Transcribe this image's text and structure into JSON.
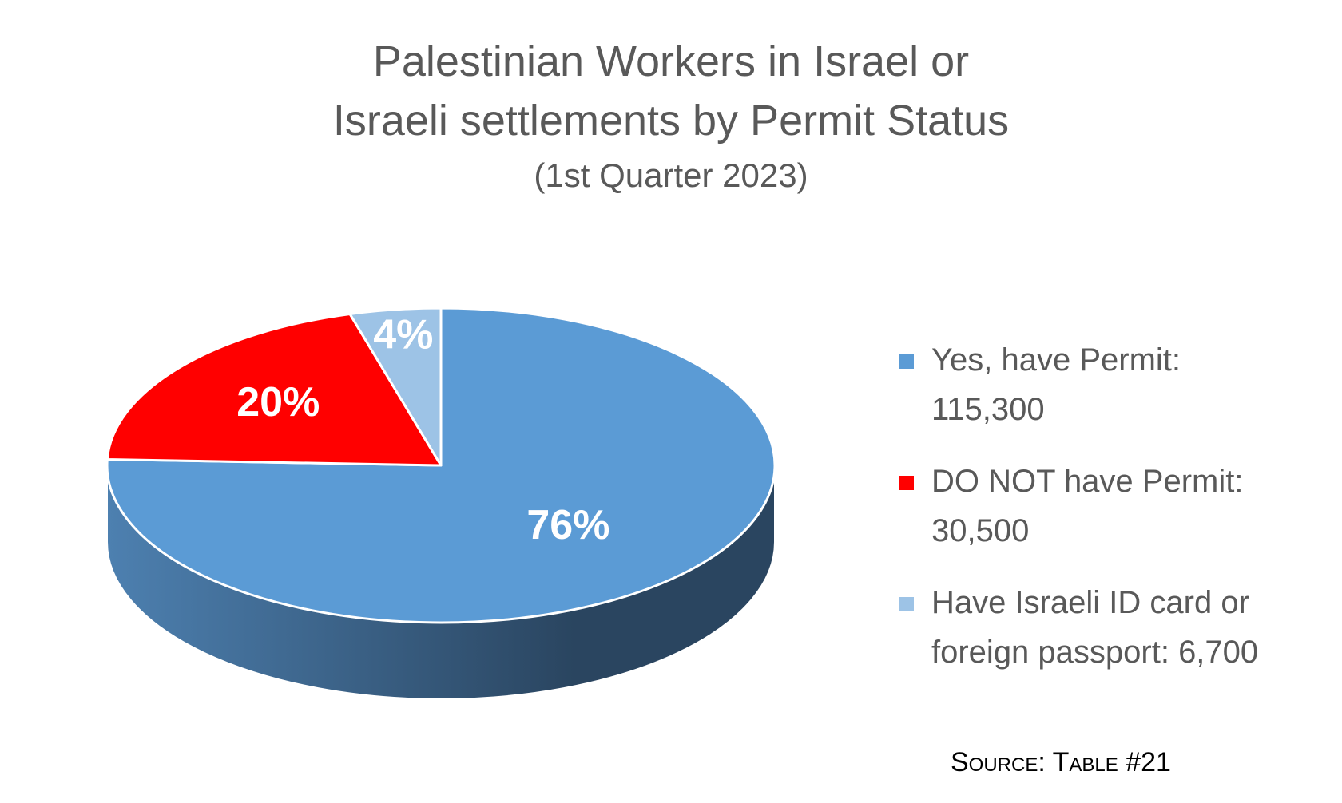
{
  "chart_data": {
    "type": "pie",
    "title": [
      "Palestinian Workers in Israel or",
      "Israeli settlements by Permit Status"
    ],
    "subtitle": "(1st Quarter 2023)",
    "categories": [
      "Yes, have Permit: 115,300",
      "DO NOT have Permit: 30,500",
      "Have Israeli ID card or foreign passport: 6,700"
    ],
    "values": [
      115300,
      30500,
      6700
    ],
    "percent_labels": [
      "76%",
      "20%",
      "4%"
    ],
    "colors": [
      "#5b9bd5",
      "#ff0000",
      "#9dc3e6"
    ],
    "side_colors": [
      "#4d80b0",
      "#2a4560"
    ],
    "legend": {
      "placement": "right",
      "items": [
        {
          "line1": "Yes, have Permit:",
          "line2": "115,300"
        },
        {
          "line1": "DO NOT have Permit:",
          "line2": "30,500"
        },
        {
          "line1": "Have Israeli ID card or",
          "line2": "foreign passport: 6,700"
        }
      ]
    },
    "source": "Source: Table #21"
  }
}
